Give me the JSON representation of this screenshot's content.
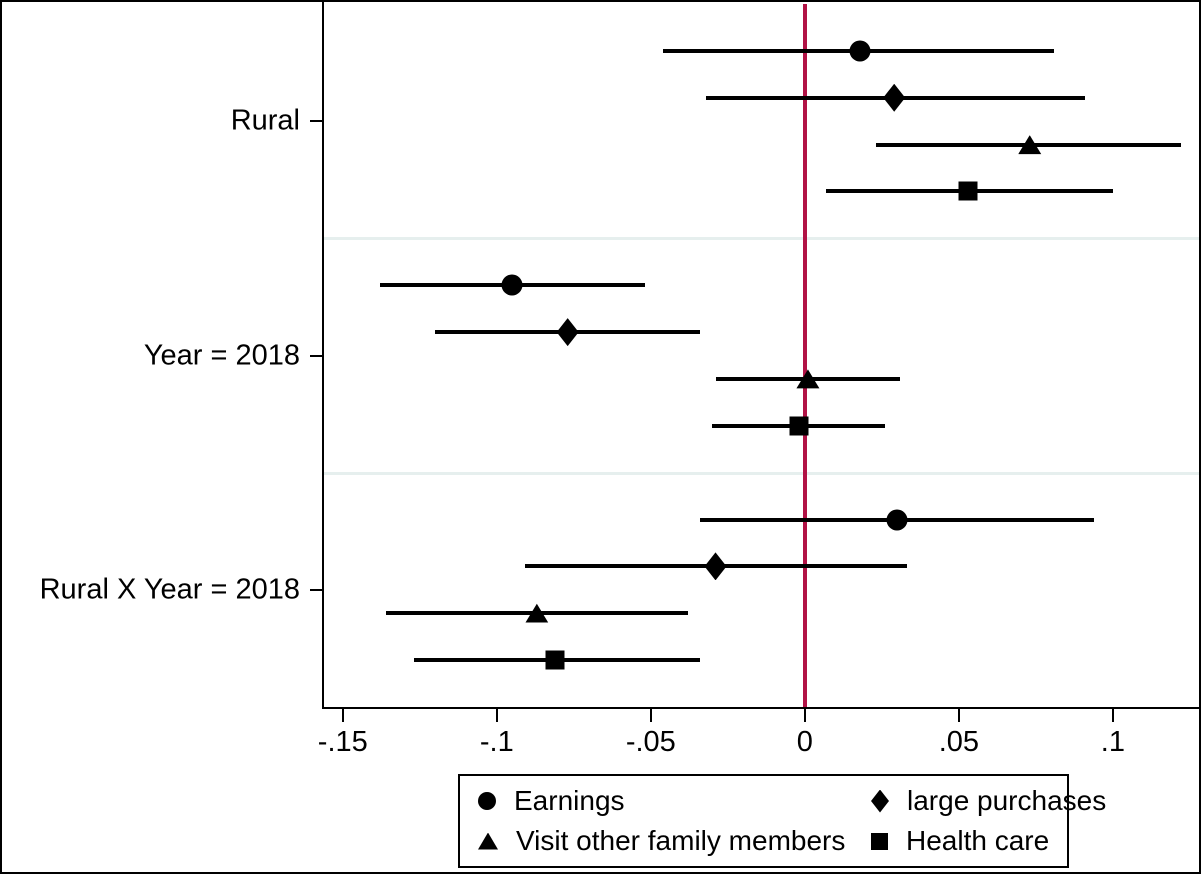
{
  "figure": {
    "background": "#ffffff",
    "border_color": "#000000"
  },
  "chart_data": {
    "type": "scatter",
    "subtype": "coefficient-plot",
    "title": "",
    "xlabel": "",
    "ylabel": "",
    "groups": [
      "Rural",
      "Year = 2018",
      "Rural X Year = 2018"
    ],
    "x_ticks": [
      -0.15,
      -0.1,
      -0.05,
      0,
      0.05,
      0.1
    ],
    "x_tick_labels": [
      "-.15",
      "-.1",
      "-.05",
      "0",
      ".05",
      ".1"
    ],
    "xlim": [
      -0.1561,
      0.1286
    ],
    "ref_line_x": 0,
    "ref_line_color": "#b11245",
    "separator_color": "#e6efee",
    "marker_color": "#000000",
    "ci_color": "#000000",
    "grid": "group-separators-only",
    "legend_position": "bottom",
    "series": [
      {
        "name": "Earnings",
        "marker": "circle",
        "values": [
          0.018,
          -0.095,
          0.03
        ],
        "ci_low": [
          -0.046,
          -0.138,
          -0.034
        ],
        "ci_high": [
          0.081,
          -0.052,
          0.094
        ]
      },
      {
        "name": "large purchases",
        "marker": "diamond",
        "values": [
          0.029,
          -0.077,
          -0.029
        ],
        "ci_low": [
          -0.032,
          -0.12,
          -0.091
        ],
        "ci_high": [
          0.091,
          -0.034,
          0.033
        ]
      },
      {
        "name": "Visit other family members",
        "marker": "triangle",
        "values": [
          0.073,
          0.001,
          -0.087
        ],
        "ci_low": [
          0.023,
          -0.029,
          -0.136
        ],
        "ci_high": [
          0.122,
          0.031,
          -0.038
        ]
      },
      {
        "name": "Health care",
        "marker": "square",
        "values": [
          0.053,
          -0.002,
          -0.081
        ],
        "ci_low": [
          0.007,
          -0.03,
          -0.127
        ],
        "ci_high": [
          0.1,
          0.026,
          -0.034
        ]
      }
    ],
    "legend": [
      {
        "marker": "circle",
        "label": "Earnings"
      },
      {
        "marker": "diamond",
        "label": "large purchases"
      },
      {
        "marker": "triangle",
        "label": "Visit other family members"
      },
      {
        "marker": "square",
        "label": "Health care"
      }
    ]
  }
}
